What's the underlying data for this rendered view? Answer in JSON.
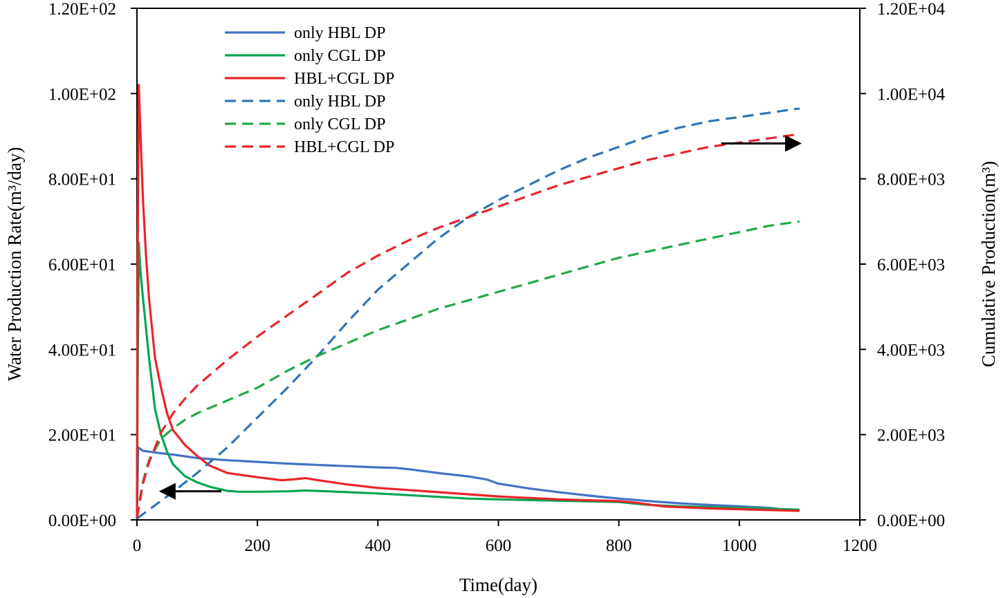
{
  "chart_data": {
    "type": "line",
    "title": "",
    "xlabel": "Time(day)",
    "ylabel": "Water Production Rate(m³/day)",
    "y2label": "Cumulative Production(m³)",
    "xlim": [
      0,
      1200
    ],
    "ylim": [
      0,
      120
    ],
    "y2lim": [
      0,
      12000
    ],
    "xticks": [
      0,
      200,
      400,
      600,
      800,
      1000,
      1200
    ],
    "xtick_labels": [
      "0",
      "200",
      "400",
      "600",
      "800",
      "1000",
      "1200"
    ],
    "yticks": [
      0,
      20,
      40,
      60,
      80,
      100,
      120
    ],
    "ytick_labels": [
      "0.00E+00",
      "2.00E+01",
      "4.00E+01",
      "6.00E+01",
      "8.00E+01",
      "1.00E+02",
      "1.20E+02"
    ],
    "y2ticks": [
      0,
      2000,
      4000,
      6000,
      8000,
      10000,
      12000
    ],
    "y2tick_labels": [
      "0.00E+00",
      "2.00E+03",
      "4.00E+03",
      "6.00E+03",
      "8.00E+03",
      "1.00E+04",
      "1.20E+04"
    ],
    "grid": false,
    "legend_position": "top-left",
    "series": [
      {
        "name": "only HBL DP",
        "axis": "left",
        "style": "solid",
        "color": "#4472C4",
        "x": [
          0,
          2,
          10,
          30,
          60,
          100,
          150,
          200,
          250,
          300,
          350,
          400,
          430,
          450,
          500,
          550,
          580,
          600,
          650,
          700,
          750,
          800,
          850,
          900,
          950,
          1000,
          1050,
          1065
        ],
        "y": [
          0.3,
          17,
          16.2,
          15.8,
          15.3,
          14.5,
          14.0,
          13.6,
          13.2,
          12.9,
          12.6,
          12.3,
          12.2,
          11.9,
          11.0,
          10.2,
          9.5,
          8.5,
          7.4,
          6.5,
          5.7,
          5.0,
          4.4,
          3.9,
          3.5,
          3.2,
          2.8,
          2.6
        ]
      },
      {
        "name": "only CGL DP",
        "axis": "left",
        "style": "solid",
        "color": "#00A651",
        "x": [
          0,
          1,
          3,
          6,
          10,
          15,
          20,
          30,
          40,
          50,
          60,
          80,
          100,
          120,
          150,
          170,
          200,
          250,
          280,
          300,
          350,
          400,
          450,
          500,
          550,
          600,
          700,
          800,
          850,
          900,
          950,
          1000,
          1050,
          1100
        ],
        "y": [
          0.3,
          30,
          65,
          58,
          52,
          45,
          38,
          26,
          20,
          16,
          13,
          10.2,
          8.8,
          7.8,
          6.8,
          6.6,
          6.6,
          6.7,
          6.9,
          6.8,
          6.5,
          6.2,
          5.8,
          5.4,
          5.0,
          4.8,
          4.5,
          4.2,
          3.5,
          3.2,
          3.0,
          2.8,
          2.6,
          2.4
        ]
      },
      {
        "name": "HBL+CGL DP",
        "axis": "left",
        "style": "solid",
        "color": "#E8252A",
        "x": [
          0,
          1,
          3,
          6,
          10,
          15,
          20,
          30,
          40,
          50,
          60,
          80,
          100,
          120,
          150,
          200,
          240,
          260,
          280,
          300,
          350,
          400,
          450,
          500,
          600,
          700,
          800,
          830,
          860,
          880,
          900,
          950,
          1000,
          1050,
          1100
        ],
        "y": [
          0.5,
          60,
          102,
          90,
          75,
          62,
          52,
          38,
          31,
          25,
          21,
          17.5,
          15,
          12.8,
          11,
          10.0,
          9.3,
          9.5,
          9.8,
          9.3,
          8.3,
          7.5,
          7.0,
          6.5,
          5.5,
          4.8,
          4.4,
          4.0,
          3.4,
          3.1,
          3.0,
          2.7,
          2.5,
          2.3,
          2.1
        ]
      },
      {
        "name": "only HBL DP",
        "axis": "right",
        "style": "dashed",
        "color": "#2F75B5",
        "x": [
          0,
          50,
          100,
          150,
          200,
          250,
          300,
          350,
          400,
          450,
          500,
          550,
          600,
          650,
          700,
          750,
          800,
          850,
          900,
          950,
          1000,
          1050,
          1100
        ],
        "y": [
          30,
          550,
          1100,
          1700,
          2400,
          3100,
          3850,
          4650,
          5400,
          6000,
          6600,
          7100,
          7500,
          7850,
          8200,
          8500,
          8750,
          9000,
          9200,
          9350,
          9450,
          9550,
          9650
        ]
      },
      {
        "name": "only CGL DP",
        "axis": "right",
        "style": "dashed",
        "color": "#23A94A",
        "x": [
          0,
          5,
          10,
          20,
          40,
          60,
          80,
          100,
          150,
          200,
          250,
          300,
          350,
          400,
          450,
          500,
          550,
          600,
          650,
          700,
          750,
          800,
          850,
          900,
          950,
          1000,
          1050,
          1100
        ],
        "y": [
          50,
          500,
          900,
          1400,
          1900,
          2150,
          2350,
          2500,
          2800,
          3100,
          3500,
          3850,
          4150,
          4450,
          4700,
          4950,
          5150,
          5350,
          5550,
          5750,
          5950,
          6150,
          6300,
          6450,
          6600,
          6750,
          6900,
          7000
        ]
      },
      {
        "name": "HBL+CGL DP",
        "axis": "right",
        "style": "dashed",
        "color": "#E8252A",
        "x": [
          0,
          10,
          20,
          40,
          60,
          80,
          100,
          150,
          200,
          250,
          300,
          350,
          400,
          450,
          500,
          550,
          600,
          650,
          700,
          750,
          800,
          850,
          900,
          950,
          1000,
          1050,
          1100
        ],
        "y": [
          50,
          850,
          1350,
          2050,
          2500,
          2850,
          3150,
          3750,
          4300,
          4800,
          5300,
          5800,
          6200,
          6550,
          6850,
          7100,
          7350,
          7600,
          7850,
          8050,
          8250,
          8450,
          8600,
          8750,
          8850,
          8950,
          9050
        ]
      }
    ],
    "annotations": [
      {
        "type": "arrow",
        "direction": "left",
        "meaning": "solid lines use left axis",
        "from": [
          140,
          6.7
        ],
        "to": [
          40,
          6.7
        ]
      },
      {
        "type": "arrow",
        "direction": "right",
        "meaning": "dashed lines use right axis",
        "from": [
          970,
          88.3
        ],
        "to": [
          1100,
          88.3
        ]
      }
    ]
  }
}
